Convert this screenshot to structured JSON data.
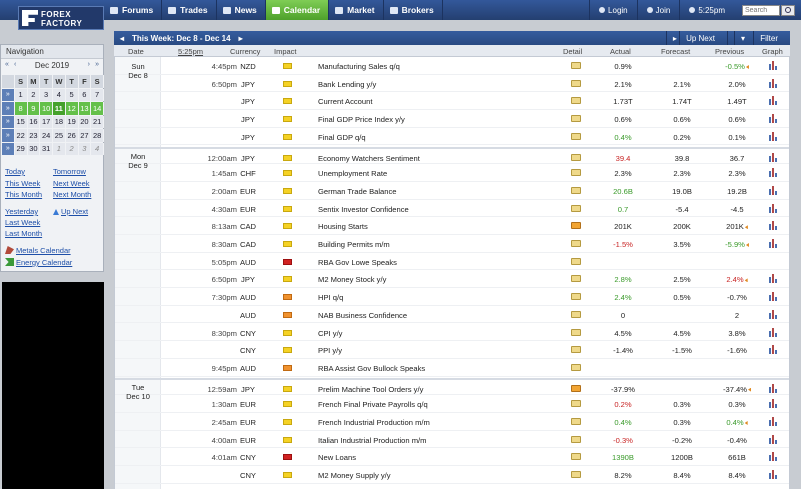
{
  "logo": {
    "line1": "FOREX",
    "line2": "FACTORY"
  },
  "nav": [
    {
      "label": "Forums",
      "icon": "forums-icon"
    },
    {
      "label": "Trades",
      "icon": "trades-icon"
    },
    {
      "label": "News",
      "icon": "news-icon"
    },
    {
      "label": "Calendar",
      "icon": "calendar-icon",
      "active": true
    },
    {
      "label": "Market",
      "icon": "market-icon"
    },
    {
      "label": "Brokers",
      "icon": "brokers-icon"
    }
  ],
  "account": {
    "login": "Login",
    "join": "Join",
    "time": "5:25pm",
    "search_placeholder": "Search"
  },
  "sidebar": {
    "title": "Navigation",
    "month": "Dec 2019",
    "weekday_headers": [
      "S",
      "M",
      "T",
      "W",
      "T",
      "F",
      "S"
    ],
    "weeks": [
      [
        "1",
        "2",
        "3",
        "4",
        "5",
        "6",
        "7"
      ],
      [
        "8",
        "9",
        "10",
        "11",
        "12",
        "13",
        "14"
      ],
      [
        "15",
        "16",
        "17",
        "18",
        "19",
        "20",
        "21"
      ],
      [
        "22",
        "23",
        "24",
        "25",
        "26",
        "27",
        "28"
      ],
      [
        "29",
        "30",
        "31",
        "1",
        "2",
        "3",
        "4"
      ]
    ],
    "links": {
      "today": "Today",
      "tomorrow": "Tomorrow",
      "this_week": "This Week",
      "next_week": "Next Week",
      "this_month": "This Month",
      "next_month": "Next Month",
      "yesterday": "Yesterday",
      "up_next": "Up Next",
      "last_week": "Last Week",
      "last_month": "Last Month",
      "metals": "Metals Calendar",
      "energy": "Energy Calendar"
    }
  },
  "weekbar": {
    "label": "This Week: Dec 8 - Dec 14",
    "up_next": "Up Next",
    "filter": "Filter"
  },
  "columns": {
    "date": "Date",
    "time": "5:25pm",
    "currency": "Currency",
    "impact": "Impact",
    "detail": "Detail",
    "actual": "Actual",
    "forecast": "Forecast",
    "previous": "Previous",
    "graph": "Graph"
  },
  "days": [
    {
      "name": "Sun",
      "date": "Dec 8",
      "row": 0
    },
    {
      "name": "Mon",
      "date": "Dec 9",
      "row": 5
    },
    {
      "name": "Tue",
      "date": "Dec 10",
      "row": 18
    }
  ],
  "events": [
    {
      "time": "4:45pm",
      "cur": "NZD",
      "impact": "low",
      "event": "Manufacturing Sales q/q",
      "actual": "0.9%",
      "forecast": "",
      "previous": "-0.5%",
      "prev_class": "pos",
      "prev_rev": true
    },
    {
      "time": "6:50pm",
      "cur": "JPY",
      "impact": "low",
      "event": "Bank Lending y/y",
      "actual": "2.1%",
      "forecast": "2.1%",
      "previous": "2.0%"
    },
    {
      "time": "",
      "cur": "JPY",
      "impact": "low",
      "event": "Current Account",
      "actual": "1.73T",
      "forecast": "1.74T",
      "previous": "1.49T"
    },
    {
      "time": "",
      "cur": "JPY",
      "impact": "low",
      "event": "Final GDP Price Index y/y",
      "actual": "0.6%",
      "forecast": "0.6%",
      "previous": "0.6%"
    },
    {
      "time": "",
      "cur": "JPY",
      "impact": "low",
      "event": "Final GDP q/q",
      "actual": "0.4%",
      "actual_class": "pos",
      "forecast": "0.2%",
      "previous": "0.1%"
    },
    {
      "time": "12:00am",
      "cur": "JPY",
      "impact": "low",
      "event": "Economy Watchers Sentiment",
      "actual": "39.4",
      "actual_class": "neg",
      "forecast": "39.8",
      "previous": "36.7"
    },
    {
      "time": "1:45am",
      "cur": "CHF",
      "impact": "low",
      "event": "Unemployment Rate",
      "actual": "2.3%",
      "forecast": "2.3%",
      "previous": "2.3%"
    },
    {
      "time": "2:00am",
      "cur": "EUR",
      "impact": "low",
      "event": "German Trade Balance",
      "actual": "20.6B",
      "actual_class": "pos",
      "forecast": "19.0B",
      "previous": "19.2B"
    },
    {
      "time": "4:30am",
      "cur": "EUR",
      "impact": "low",
      "event": "Sentix Investor Confidence",
      "actual": "0.7",
      "actual_class": "pos",
      "forecast": "-5.4",
      "previous": "-4.5"
    },
    {
      "time": "8:13am",
      "cur": "CAD",
      "impact": "low",
      "event": "Housing Starts",
      "actual": "201K",
      "forecast": "200K",
      "previous": "201K",
      "prev_rev": true,
      "detail_new": true
    },
    {
      "time": "8:30am",
      "cur": "CAD",
      "impact": "low",
      "event": "Building Permits m/m",
      "actual": "-1.5%",
      "actual_class": "neg",
      "forecast": "3.5%",
      "previous": "-5.9%",
      "prev_class": "pos",
      "prev_rev": true
    },
    {
      "time": "5:05pm",
      "cur": "AUD",
      "impact": "high",
      "event": "RBA Gov Lowe Speaks",
      "actual": "",
      "forecast": "",
      "previous": "",
      "no_graph": true
    },
    {
      "time": "6:50pm",
      "cur": "JPY",
      "impact": "low",
      "event": "M2 Money Stock y/y",
      "actual": "2.8%",
      "actual_class": "pos",
      "forecast": "2.5%",
      "previous": "2.4%",
      "prev_class": "neg",
      "prev_rev": true
    },
    {
      "time": "7:30pm",
      "cur": "AUD",
      "impact": "med",
      "event": "HPI q/q",
      "actual": "2.4%",
      "actual_class": "pos",
      "forecast": "0.5%",
      "previous": "-0.7%"
    },
    {
      "time": "",
      "cur": "AUD",
      "impact": "med",
      "event": "NAB Business Confidence",
      "actual": "0",
      "forecast": "",
      "previous": "2"
    },
    {
      "time": "8:30pm",
      "cur": "CNY",
      "impact": "low",
      "event": "CPI y/y",
      "actual": "4.5%",
      "forecast": "4.5%",
      "previous": "3.8%"
    },
    {
      "time": "",
      "cur": "CNY",
      "impact": "low",
      "event": "PPI y/y",
      "actual": "-1.4%",
      "forecast": "-1.5%",
      "previous": "-1.6%"
    },
    {
      "time": "9:45pm",
      "cur": "AUD",
      "impact": "med",
      "event": "RBA Assist Gov Bullock Speaks",
      "actual": "",
      "forecast": "",
      "previous": "",
      "no_graph": true
    },
    {
      "time": "12:59am",
      "cur": "JPY",
      "impact": "low",
      "event": "Prelim Machine Tool Orders y/y",
      "actual": "-37.9%",
      "forecast": "",
      "previous": "-37.4%",
      "prev_rev": true,
      "detail_new": true
    },
    {
      "time": "1:30am",
      "cur": "EUR",
      "impact": "low",
      "event": "French Final Private Payrolls q/q",
      "actual": "0.2%",
      "actual_class": "neg",
      "forecast": "0.3%",
      "previous": "0.3%"
    },
    {
      "time": "2:45am",
      "cur": "EUR",
      "impact": "low",
      "event": "French Industrial Production m/m",
      "actual": "0.4%",
      "actual_class": "pos",
      "forecast": "0.3%",
      "previous": "0.4%",
      "prev_class": "pos",
      "prev_rev": true
    },
    {
      "time": "4:00am",
      "cur": "EUR",
      "impact": "low",
      "event": "Italian Industrial Production m/m",
      "actual": "-0.3%",
      "actual_class": "neg",
      "forecast": "-0.2%",
      "previous": "-0.4%"
    },
    {
      "time": "4:01am",
      "cur": "CNY",
      "impact": "high",
      "event": "New Loans",
      "actual": "1390B",
      "actual_class": "pos",
      "forecast": "1200B",
      "previous": "661B"
    },
    {
      "time": "",
      "cur": "CNY",
      "impact": "low",
      "event": "M2 Money Supply y/y",
      "actual": "8.2%",
      "forecast": "8.4%",
      "previous": "8.4%"
    }
  ]
}
